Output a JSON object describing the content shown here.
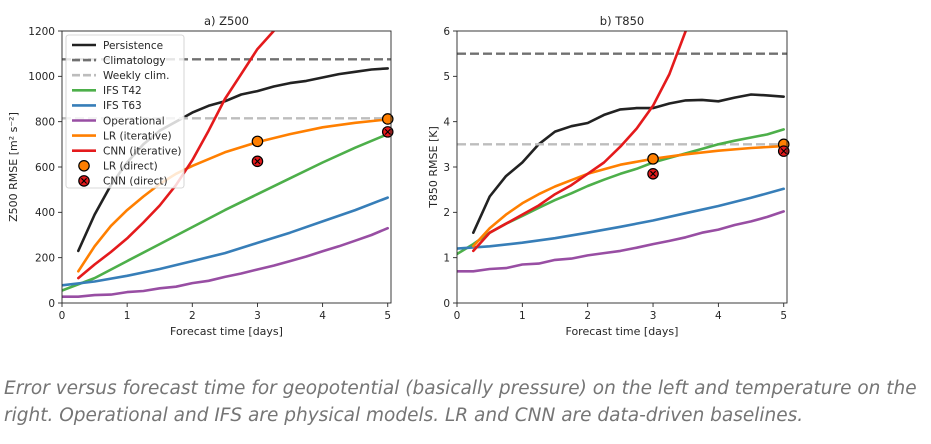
{
  "caption": "Error versus forecast time for geopotential (basically pressure) on the left and temperature on the right. Operational and IFS are physical models. LR and CNN are data-driven baselines.",
  "legend": [
    {
      "label": "Persistence",
      "kind": "line",
      "color": "#222222",
      "dash": false
    },
    {
      "label": "Climatology",
      "kind": "line",
      "color": "#707070",
      "dash": true
    },
    {
      "label": "Weekly clim.",
      "kind": "line",
      "color": "#bdbdbd",
      "dash": true
    },
    {
      "label": "IFS T42",
      "kind": "line",
      "color": "#4daf4a",
      "dash": false
    },
    {
      "label": "IFS T63",
      "kind": "line",
      "color": "#377eb8",
      "dash": false
    },
    {
      "label": "Operational",
      "kind": "line",
      "color": "#984ea3",
      "dash": false
    },
    {
      "label": "LR (iterative)",
      "kind": "line",
      "color": "#ff7f00",
      "dash": false
    },
    {
      "label": "CNN (iterative)",
      "kind": "line",
      "color": "#e41a1c",
      "dash": false
    },
    {
      "label": "LR (direct)",
      "kind": "marker",
      "color": "#ff7f00"
    },
    {
      "label": "CNN (direct)",
      "kind": "marker",
      "color": "#e41a1c"
    }
  ],
  "chart_data": [
    {
      "type": "line",
      "title": "a) Z500",
      "xlabel": "Forecast time [days]",
      "ylabel": "Z500 RMSE [m² s⁻²]",
      "xlim": [
        0,
        5.05
      ],
      "ylim": [
        0,
        1200
      ],
      "xticks": [
        0,
        1,
        2,
        3,
        4,
        5
      ],
      "yticks": [
        0,
        200,
        400,
        600,
        800,
        1000,
        1200
      ],
      "legend_position": "top-left",
      "grid": false,
      "series": [
        {
          "name": "Persistence",
          "color": "#222222",
          "x": [
            0.25,
            0.5,
            0.75,
            1,
            1.25,
            1.5,
            1.75,
            2,
            2.25,
            2.5,
            2.75,
            3,
            3.25,
            3.5,
            3.75,
            4,
            4.25,
            4.5,
            4.75,
            5
          ],
          "y": [
            230,
            390,
            520,
            620,
            700,
            760,
            800,
            840,
            870,
            890,
            920,
            935,
            955,
            970,
            980,
            995,
            1010,
            1020,
            1030,
            1035
          ]
        },
        {
          "name": "Climatology",
          "color": "#707070",
          "dash": true,
          "x": [
            0,
            5.05
          ],
          "y": [
            1075,
            1075
          ]
        },
        {
          "name": "Weekly clim.",
          "color": "#bdbdbd",
          "dash": true,
          "x": [
            0,
            5.05
          ],
          "y": [
            815,
            815
          ]
        },
        {
          "name": "IFS T42",
          "color": "#4daf4a",
          "x": [
            0,
            0.5,
            1,
            1.5,
            2,
            2.5,
            3,
            3.5,
            4,
            4.5,
            5
          ],
          "y": [
            55,
            110,
            185,
            260,
            335,
            410,
            480,
            550,
            620,
            685,
            745
          ]
        },
        {
          "name": "IFS T63",
          "color": "#377eb8",
          "x": [
            0,
            0.5,
            1,
            1.5,
            2,
            2.5,
            3,
            3.5,
            4,
            4.5,
            5
          ],
          "y": [
            78,
            95,
            120,
            150,
            185,
            220,
            265,
            310,
            360,
            410,
            465
          ]
        },
        {
          "name": "Operational",
          "color": "#984ea3",
          "x": [
            0,
            0.25,
            0.5,
            0.75,
            1,
            1.25,
            1.5,
            1.75,
            2,
            2.25,
            2.5,
            2.75,
            3,
            3.25,
            3.5,
            3.75,
            4,
            4.25,
            4.5,
            4.75,
            5
          ],
          "y": [
            28,
            28,
            35,
            37,
            48,
            53,
            65,
            72,
            88,
            98,
            115,
            130,
            148,
            165,
            185,
            205,
            228,
            250,
            275,
            300,
            330
          ]
        },
        {
          "name": "LR (iterative)",
          "color": "#ff7f00",
          "x": [
            0.25,
            0.5,
            0.75,
            1,
            1.25,
            1.5,
            1.75,
            2,
            2.5,
            3,
            3.5,
            4,
            4.5,
            5
          ],
          "y": [
            140,
            250,
            340,
            410,
            470,
            525,
            570,
            605,
            665,
            710,
            745,
            775,
            795,
            810
          ]
        },
        {
          "name": "CNN (iterative)",
          "color": "#e41a1c",
          "x": [
            0.25,
            0.5,
            0.75,
            1,
            1.25,
            1.5,
            1.75,
            2,
            2.25,
            2.5,
            2.75,
            3,
            3.25
          ],
          "y": [
            110,
            170,
            225,
            285,
            355,
            430,
            520,
            630,
            760,
            900,
            1010,
            1120,
            1200
          ]
        },
        {
          "name": "LR (direct)",
          "marker": "ring",
          "color": "#ff7f00",
          "x": [
            3,
            5
          ],
          "y": [
            713,
            812
          ]
        },
        {
          "name": "CNN (direct)",
          "marker": "x",
          "color": "#e41a1c",
          "x": [
            3,
            5
          ],
          "y": [
            625,
            755
          ]
        }
      ]
    },
    {
      "type": "line",
      "title": "b) T850",
      "xlabel": "Forecast time [days]",
      "ylabel": "T850 RMSE [K]",
      "xlim": [
        0,
        5.05
      ],
      "ylim": [
        0,
        6
      ],
      "xticks": [
        0,
        1,
        2,
        3,
        4,
        5
      ],
      "yticks": [
        0,
        1,
        2,
        3,
        4,
        5,
        6
      ],
      "grid": false,
      "series": [
        {
          "name": "Persistence",
          "color": "#222222",
          "x": [
            0.25,
            0.5,
            0.75,
            1,
            1.25,
            1.5,
            1.75,
            2,
            2.25,
            2.5,
            2.75,
            3,
            3.25,
            3.5,
            3.75,
            4,
            4.25,
            4.5,
            4.75,
            5
          ],
          "y": [
            1.55,
            2.35,
            2.8,
            3.1,
            3.5,
            3.78,
            3.9,
            3.97,
            4.15,
            4.27,
            4.3,
            4.3,
            4.4,
            4.47,
            4.48,
            4.45,
            4.53,
            4.6,
            4.58,
            4.55
          ]
        },
        {
          "name": "Climatology",
          "color": "#707070",
          "dash": true,
          "x": [
            0,
            5.05
          ],
          "y": [
            5.5,
            5.5
          ]
        },
        {
          "name": "Weekly clim.",
          "color": "#bdbdbd",
          "dash": true,
          "x": [
            0,
            5.05
          ],
          "y": [
            3.5,
            3.5
          ]
        },
        {
          "name": "IFS T42",
          "color": "#4daf4a",
          "x": [
            0,
            0.25,
            0.5,
            0.75,
            1,
            1.25,
            1.5,
            1.75,
            2,
            2.25,
            2.5,
            2.75,
            3,
            3.25,
            3.5,
            3.75,
            4,
            4.25,
            4.5,
            4.75,
            5
          ],
          "y": [
            1.08,
            1.3,
            1.55,
            1.75,
            1.92,
            2.1,
            2.27,
            2.42,
            2.58,
            2.72,
            2.85,
            2.96,
            3.1,
            3.2,
            3.3,
            3.4,
            3.5,
            3.58,
            3.65,
            3.72,
            3.83
          ]
        },
        {
          "name": "IFS T63",
          "color": "#377eb8",
          "x": [
            0,
            0.5,
            1,
            1.5,
            2,
            2.5,
            3,
            3.5,
            4,
            4.5,
            5
          ],
          "y": [
            1.2,
            1.25,
            1.33,
            1.43,
            1.55,
            1.68,
            1.82,
            1.98,
            2.14,
            2.32,
            2.52
          ]
        },
        {
          "name": "Operational",
          "color": "#984ea3",
          "x": [
            0,
            0.25,
            0.5,
            0.75,
            1,
            1.25,
            1.5,
            1.75,
            2,
            2.25,
            2.5,
            2.75,
            3,
            3.25,
            3.5,
            3.75,
            4,
            4.25,
            4.5,
            4.75,
            5
          ],
          "y": [
            0.7,
            0.7,
            0.75,
            0.77,
            0.85,
            0.87,
            0.95,
            0.98,
            1.05,
            1.1,
            1.15,
            1.22,
            1.3,
            1.37,
            1.45,
            1.55,
            1.62,
            1.72,
            1.8,
            1.9,
            2.02
          ]
        },
        {
          "name": "LR (iterative)",
          "color": "#ff7f00",
          "x": [
            0.25,
            0.5,
            0.75,
            1,
            1.25,
            1.5,
            2,
            2.5,
            3,
            3.5,
            4,
            4.5,
            5
          ],
          "y": [
            1.25,
            1.65,
            1.95,
            2.2,
            2.4,
            2.57,
            2.85,
            3.05,
            3.18,
            3.28,
            3.36,
            3.42,
            3.46
          ]
        },
        {
          "name": "CNN (iterative)",
          "color": "#e41a1c",
          "x": [
            0.25,
            0.5,
            0.75,
            1,
            1.25,
            1.5,
            1.75,
            2,
            2.25,
            2.5,
            2.75,
            3,
            3.25,
            3.5
          ],
          "y": [
            1.15,
            1.55,
            1.75,
            1.95,
            2.15,
            2.4,
            2.6,
            2.85,
            3.1,
            3.45,
            3.85,
            4.35,
            5.05,
            6.0
          ]
        },
        {
          "name": "LR (direct)",
          "marker": "ring",
          "color": "#ff7f00",
          "x": [
            3,
            5
          ],
          "y": [
            3.18,
            3.5
          ]
        },
        {
          "name": "CNN (direct)",
          "marker": "x",
          "color": "#e41a1c",
          "x": [
            3,
            5
          ],
          "y": [
            2.85,
            3.35
          ]
        }
      ]
    }
  ]
}
